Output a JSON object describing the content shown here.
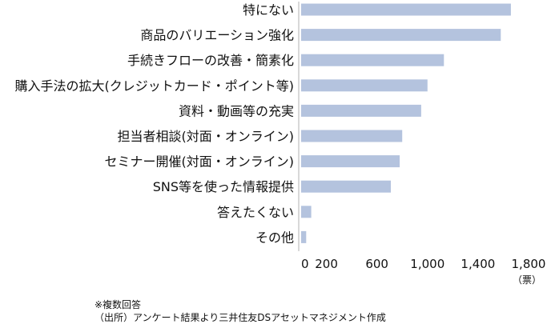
{
  "chart_data": {
    "type": "bar",
    "orientation": "horizontal",
    "categories": [
      "特にない",
      "商品のバリエーション強化",
      "手続きフローの改善・簡素化",
      "購入手法の拡大(クレジットカード・ポイント等)",
      "資料・動画等の充実",
      "担当者相談(対面・オンライン)",
      "セミナー開催(対面・オンライン)",
      "SNS等を使った情報提供",
      "答えたくない",
      "その他"
    ],
    "values": [
      1660,
      1580,
      1130,
      1000,
      950,
      800,
      780,
      710,
      80,
      40
    ],
    "xlim": [
      0,
      1800
    ],
    "xticks": [
      0,
      200,
      600,
      1000,
      1400,
      1800
    ],
    "xtick_labels": [
      "0",
      "200",
      "600",
      "1,000",
      "1,400",
      "1,800"
    ],
    "unit_label": "（票）",
    "bar_color": "#b4c3de",
    "grid": false,
    "legend": "none"
  },
  "notes": {
    "line1": "※複数回答",
    "line2": "（出所）アンケート結果より三井住友DSアセットマネジメント作成"
  }
}
